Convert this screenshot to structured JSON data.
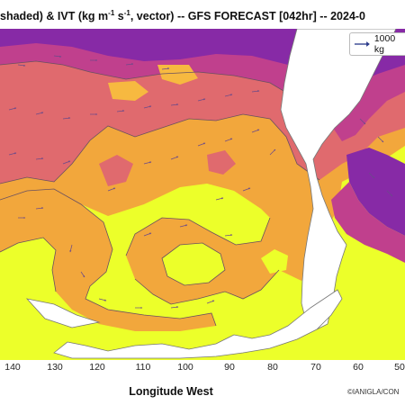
{
  "title": {
    "part1": " shaded) & IVT (kg m",
    "exp1": "-1",
    "part2": " s",
    "exp2": "-1",
    "part3": ", vector) -- GFS FORECAST [042hr] -- 2024-0"
  },
  "legend": {
    "label": "1000 kg"
  },
  "x_axis": {
    "label": "Longitude West",
    "ticks": [
      "140",
      "130",
      "120",
      "110",
      "100",
      "90",
      "80",
      "70",
      "60",
      "50"
    ]
  },
  "credit": "©IANIGLA/CON",
  "colors": {
    "low": "#ecff2a",
    "orange": "#f2a73c",
    "orange_light": "#f7b940",
    "pink": "#e06a6e",
    "magenta": "#c0408d",
    "purple": "#872aa6",
    "land": "#ffffff",
    "contour": "#6a5060",
    "vector": "#6a4a8a"
  }
}
